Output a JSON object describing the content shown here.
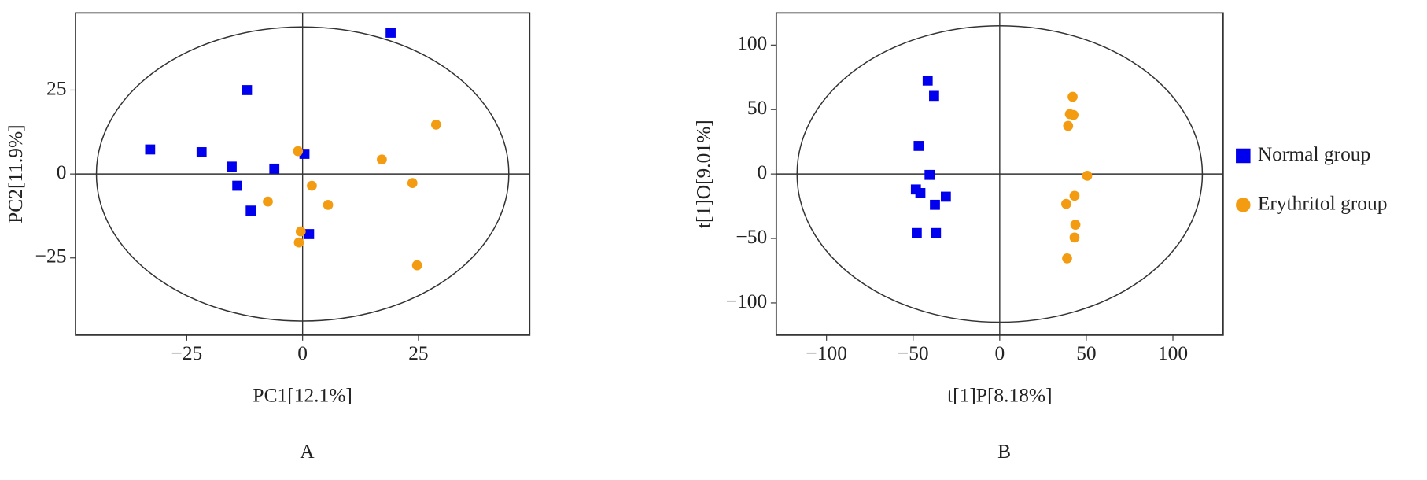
{
  "chart_data": [
    {
      "type": "scatter",
      "label": "A",
      "x_label": "PC1[12.1%]",
      "y_label": "PC2[11.9%]",
      "xlim": [
        -49,
        49
      ],
      "ylim": [
        -48,
        48
      ],
      "xticks": [
        {
          "value": -25,
          "label": "−25"
        },
        0,
        25
      ],
      "yticks": [
        {
          "value": -25,
          "label": "−25"
        },
        0,
        25
      ],
      "grid": false,
      "ellipse": {
        "rx": 44.5,
        "ry": 43.8
      },
      "series": [
        {
          "color": "#0000ee",
          "marker": "square",
          "x": [
            19.0,
            -12.0,
            -32.9,
            -21.8,
            -15.3,
            -6.1,
            0.4,
            -14.1,
            -11.2,
            1.4
          ],
          "values": [
            42.1,
            25.0,
            7.3,
            6.5,
            2.2,
            1.6,
            6.0,
            -3.5,
            -10.9,
            -17.9
          ]
        },
        {
          "color": "#f39c12",
          "marker": "circle",
          "x": [
            28.8,
            17.1,
            -1.0,
            2.0,
            23.7,
            -7.5,
            5.5,
            -0.4,
            -0.8,
            24.7
          ],
          "values": [
            14.7,
            4.3,
            6.8,
            -3.5,
            -2.7,
            -8.2,
            -9.2,
            -17.1,
            -20.4,
            -27.2
          ]
        }
      ]
    },
    {
      "type": "scatter",
      "label": "B",
      "x_label": "t[1]P[8.18%]",
      "y_label": "t[1]O[9.01%]",
      "xlim": [
        -129,
        129
      ],
      "ylim": [
        -125,
        125
      ],
      "xticks": [
        {
          "value": -100,
          "label": "−100"
        },
        {
          "value": -50,
          "label": "−50"
        },
        0,
        50,
        100
      ],
      "yticks": [
        {
          "value": -100,
          "label": "−100"
        },
        {
          "value": -50,
          "label": "−50"
        },
        0,
        50,
        100
      ],
      "grid": false,
      "legend": "right",
      "ellipse": {
        "rx": 117,
        "ry": 115
      },
      "series": [
        {
          "name": "Normal group",
          "color": "#0000ee",
          "marker": "square",
          "x": [
            -41.6,
            -37.9,
            -46.8,
            -40.5,
            -48.4,
            -45.8,
            -31.1,
            -37.4,
            -47.9,
            -36.8
          ],
          "values": [
            72.5,
            60.6,
            21.8,
            -0.7,
            -12,
            -14.8,
            -17.6,
            -23.9,
            -45.8,
            -45.8
          ]
        },
        {
          "name": "Erythritol group",
          "color": "#f39c12",
          "marker": "circle",
          "x": [
            42.1,
            40.5,
            42.6,
            39.5,
            50.5,
            43.2,
            38.4,
            43.7,
            43.2,
            38.9
          ],
          "values": [
            59.9,
            46.5,
            45.8,
            37.3,
            -1.4,
            -16.9,
            -23.2,
            -39.4,
            -49.3,
            -65.5
          ]
        }
      ]
    }
  ]
}
